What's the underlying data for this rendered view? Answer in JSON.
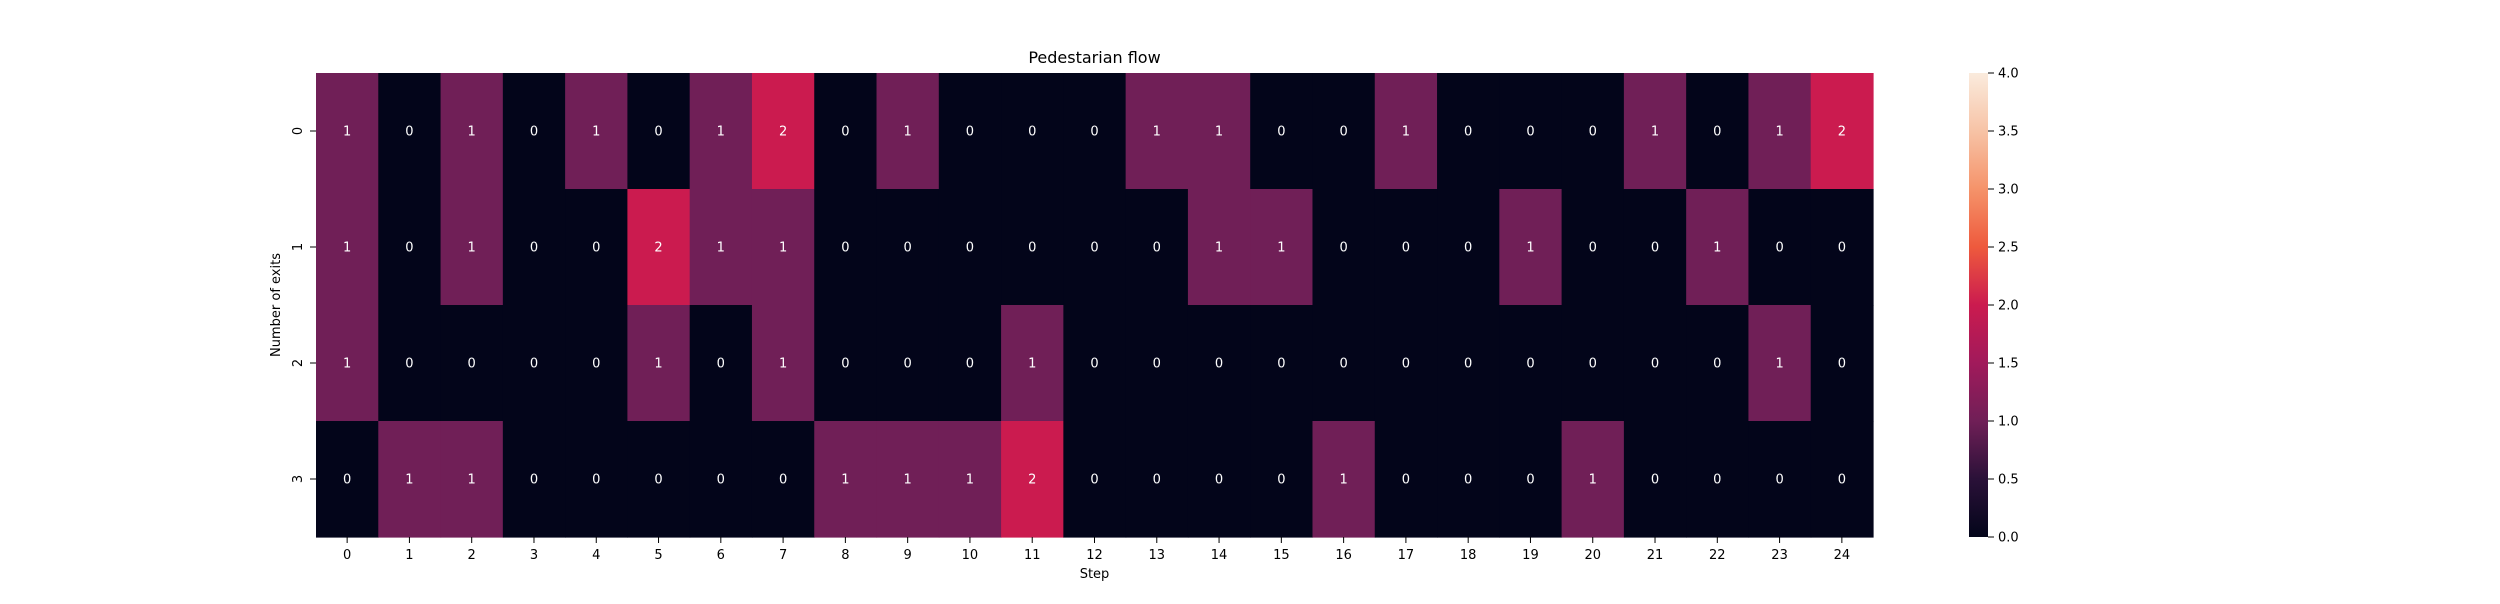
{
  "chart_data": {
    "type": "heatmap",
    "title": "Pedestarian flow",
    "xlabel": "Step",
    "ylabel": "Number of exits",
    "x": [
      "0",
      "1",
      "2",
      "3",
      "4",
      "5",
      "6",
      "7",
      "8",
      "9",
      "10",
      "11",
      "12",
      "13",
      "14",
      "15",
      "16",
      "17",
      "18",
      "19",
      "20",
      "21",
      "22",
      "23",
      "24"
    ],
    "y": [
      "0",
      "1",
      "2",
      "3"
    ],
    "values": [
      [
        1,
        0,
        1,
        0,
        1,
        0,
        1,
        2,
        0,
        1,
        0,
        0,
        0,
        1,
        1,
        0,
        0,
        1,
        0,
        0,
        0,
        1,
        0,
        1,
        2
      ],
      [
        1,
        0,
        1,
        0,
        0,
        2,
        1,
        1,
        0,
        0,
        0,
        0,
        0,
        0,
        1,
        1,
        0,
        0,
        0,
        1,
        0,
        0,
        1,
        0,
        0
      ],
      [
        1,
        0,
        0,
        0,
        0,
        1,
        0,
        1,
        0,
        0,
        0,
        1,
        0,
        0,
        0,
        0,
        0,
        0,
        0,
        0,
        0,
        0,
        0,
        1,
        0
      ],
      [
        0,
        1,
        1,
        0,
        0,
        0,
        0,
        0,
        1,
        1,
        1,
        2,
        0,
        0,
        0,
        0,
        1,
        0,
        0,
        0,
        1,
        0,
        0,
        0,
        0
      ]
    ],
    "colorbar": {
      "range": [
        0,
        4
      ],
      "ticks": [
        "0.0",
        "0.5",
        "1.0",
        "1.5",
        "2.0",
        "2.5",
        "3.0",
        "3.5",
        "4.0"
      ],
      "colors": {
        "0": "#03051a",
        "1": "#701f57",
        "2": "#cb1b4f",
        "4": "#faebdd"
      }
    },
    "annotations": true,
    "grid": false,
    "legend": "colorbar-right"
  }
}
